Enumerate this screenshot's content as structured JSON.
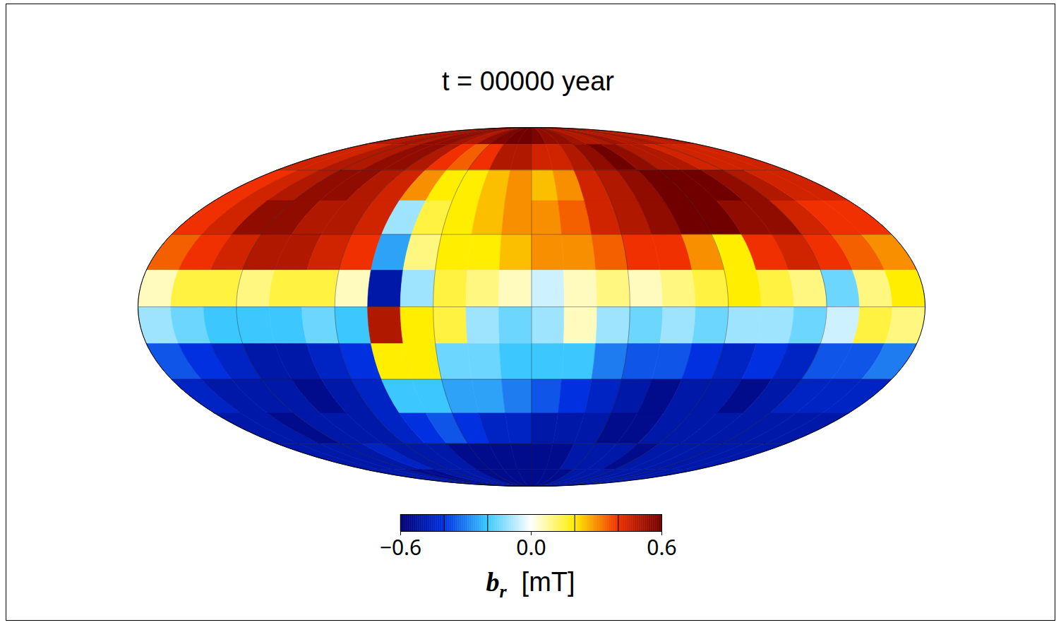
{
  "chart_data": {
    "type": "heatmap",
    "title": "t = 00000 year",
    "grid": true,
    "tick_labels": false,
    "x": [
      -172.5,
      -157.5,
      -142.5,
      -127.5,
      -112.5,
      -97.5,
      -82.5,
      -67.5,
      -52.5,
      -37.5,
      -22.5,
      -7.5,
      7.5,
      22.5,
      37.5,
      52.5,
      67.5,
      82.5,
      97.5,
      112.5,
      127.5,
      142.5,
      157.5,
      172.5
    ],
    "y": [
      82.5,
      67.5,
      52.5,
      37.5,
      22.5,
      7.5,
      -7.5,
      -22.5,
      -37.5,
      -52.5,
      -67.5,
      -82.5
    ],
    "values": [
      [
        0.5,
        0.5,
        0.52,
        0.5,
        0.55,
        0.55,
        0.52,
        0.5,
        0.55,
        0.58,
        0.6,
        0.6,
        0.58,
        0.55,
        0.55,
        0.52,
        0.5,
        0.5,
        0.52,
        0.5,
        0.5,
        0.5,
        0.48,
        0.5
      ],
      [
        0.45,
        0.45,
        0.5,
        0.5,
        0.55,
        0.55,
        0.5,
        0.4,
        0.35,
        0.4,
        0.5,
        0.5,
        0.45,
        0.45,
        0.5,
        0.55,
        0.6,
        0.55,
        0.5,
        0.5,
        0.45,
        0.45,
        0.45,
        0.45
      ],
      [
        0.4,
        0.45,
        0.5,
        0.55,
        0.55,
        0.5,
        0.45,
        0.3,
        0.2,
        0.2,
        0.25,
        0.3,
        0.25,
        0.3,
        0.45,
        0.5,
        0.55,
        0.6,
        0.6,
        0.6,
        0.55,
        0.5,
        0.45,
        0.45
      ],
      [
        0.4,
        0.45,
        0.55,
        0.55,
        0.5,
        0.5,
        0.45,
        -0.1,
        0.15,
        0.2,
        0.25,
        0.3,
        0.3,
        0.35,
        0.45,
        0.5,
        0.55,
        0.6,
        0.6,
        0.55,
        0.55,
        0.45,
        0.4,
        0.4
      ],
      [
        0.35,
        0.4,
        0.45,
        0.5,
        0.5,
        0.45,
        0.4,
        -0.25,
        0.1,
        0.2,
        0.2,
        0.25,
        0.3,
        0.3,
        0.35,
        0.4,
        0.4,
        0.3,
        0.2,
        0.4,
        0.45,
        0.4,
        0.35,
        0.3
      ],
      [
        0.05,
        0.15,
        0.15,
        0.1,
        0.15,
        0.15,
        0.05,
        -0.5,
        -0.1,
        0.15,
        0.1,
        0.05,
        -0.05,
        0.05,
        0.1,
        0.05,
        0.1,
        0.15,
        0.2,
        0.15,
        0.1,
        -0.15,
        0.1,
        0.2
      ],
      [
        -0.1,
        -0.15,
        -0.2,
        -0.2,
        -0.2,
        -0.15,
        -0.2,
        0.5,
        0.2,
        0.15,
        -0.1,
        -0.15,
        -0.1,
        0.05,
        -0.1,
        -0.15,
        -0.1,
        -0.15,
        -0.1,
        -0.1,
        -0.15,
        -0.05,
        0.15,
        0.1
      ],
      [
        -0.35,
        -0.4,
        -0.45,
        -0.5,
        -0.5,
        -0.45,
        -0.4,
        0.2,
        0.2,
        -0.15,
        -0.15,
        -0.2,
        -0.2,
        -0.2,
        -0.3,
        -0.35,
        -0.35,
        -0.4,
        -0.45,
        -0.4,
        -0.45,
        -0.35,
        -0.35,
        -0.3
      ],
      [
        -0.45,
        -0.5,
        -0.5,
        -0.5,
        -0.55,
        -0.5,
        -0.45,
        -0.2,
        -0.2,
        -0.25,
        -0.25,
        -0.3,
        -0.35,
        -0.4,
        -0.45,
        -0.5,
        -0.55,
        -0.5,
        -0.5,
        -0.55,
        -0.5,
        -0.45,
        -0.45,
        -0.45
      ],
      [
        -0.5,
        -0.5,
        -0.55,
        -0.5,
        -0.5,
        -0.5,
        -0.45,
        -0.4,
        -0.35,
        -0.4,
        -0.45,
        -0.45,
        -0.5,
        -0.5,
        -0.5,
        -0.55,
        -0.55,
        -0.5,
        -0.5,
        -0.5,
        -0.5,
        -0.5,
        -0.5,
        -0.5
      ],
      [
        -0.5,
        -0.5,
        -0.5,
        -0.5,
        -0.45,
        -0.5,
        -0.5,
        -0.5,
        -0.55,
        -0.55,
        -0.55,
        -0.55,
        -0.55,
        -0.55,
        -0.5,
        -0.5,
        -0.5,
        -0.55,
        -0.5,
        -0.5,
        -0.5,
        -0.5,
        -0.5,
        -0.5
      ],
      [
        -0.5,
        -0.5,
        -0.5,
        -0.55,
        -0.55,
        -0.5,
        -0.5,
        -0.5,
        -0.55,
        -0.55,
        -0.55,
        -0.55,
        -0.55,
        -0.55,
        -0.55,
        -0.5,
        -0.5,
        -0.5,
        -0.5,
        -0.5,
        -0.5,
        -0.5,
        -0.5,
        -0.5
      ]
    ],
    "colorbar": {
      "range": [
        -0.6,
        0.6
      ],
      "ticks": [
        {
          "value": -0.6,
          "label": "−0.6"
        },
        {
          "value": 0,
          "label": "0.0"
        },
        {
          "value": 0.6,
          "label": "0.6"
        }
      ],
      "minor_ticks": [
        -0.4,
        -0.2,
        0.2,
        0.4
      ],
      "label": {
        "symbol": "b",
        "subscript": "r",
        "units": "[mT]"
      }
    }
  }
}
